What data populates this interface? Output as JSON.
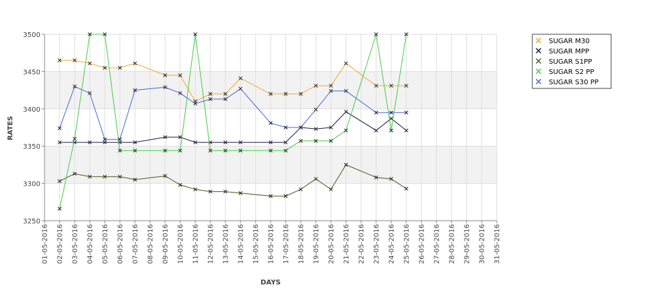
{
  "chart_data": {
    "type": "line",
    "xlabel": "DAYS",
    "ylabel": "RATES",
    "ylim": [
      3250,
      3500
    ],
    "y_ticks": [
      3250,
      3300,
      3350,
      3400,
      3450,
      3500
    ],
    "band_colors": [
      "#ffffff",
      "#f2f2f2"
    ],
    "grid": true,
    "legend_position": "top-right",
    "categories": [
      "01-05-2016",
      "02-05-2016",
      "03-05-2016",
      "04-05-2016",
      "05-05-2016",
      "06-05-2016",
      "07-05-2016",
      "08-05-2016",
      "09-05-2016",
      "10-05-2016",
      "11-05-2016",
      "12-05-2016",
      "13-05-2016",
      "14-05-2016",
      "15-05-2016",
      "16-05-2016",
      "17-05-2016",
      "18-05-2016",
      "19-05-2016",
      "20-05-2016",
      "21-05-2016",
      "22-05-2016",
      "23-05-2016",
      "24-05-2016",
      "25-05-2016",
      "26-05-2016",
      "27-05-2016",
      "28-05-2016",
      "29-05-2016",
      "30-05-2016",
      "31-05-2016"
    ],
    "series": [
      {
        "name": "SUGAR M30",
        "color": "#f0a830",
        "points": [
          [
            "02-05-2016",
            3465
          ],
          [
            "03-05-2016",
            3465
          ],
          [
            "04-05-2016",
            3461
          ],
          [
            "05-05-2016",
            3455
          ],
          [
            "06-05-2016",
            3455
          ],
          [
            "07-05-2016",
            3461
          ],
          [
            "09-05-2016",
            3445
          ],
          [
            "10-05-2016",
            3445
          ],
          [
            "11-05-2016",
            3410
          ],
          [
            "12-05-2016",
            3420
          ],
          [
            "13-05-2016",
            3420
          ],
          [
            "14-05-2016",
            3441
          ],
          [
            "16-05-2016",
            3420
          ],
          [
            "17-05-2016",
            3420
          ],
          [
            "18-05-2016",
            3420
          ],
          [
            "19-05-2016",
            3431
          ],
          [
            "20-05-2016",
            3431
          ],
          [
            "21-05-2016",
            3461
          ],
          [
            "23-05-2016",
            3431
          ],
          [
            "24-05-2016",
            3431
          ],
          [
            "25-05-2016",
            3431
          ]
        ]
      },
      {
        "name": "SUGAR MPP",
        "color": "#1a1a50",
        "points": [
          [
            "02-05-2016",
            3355
          ],
          [
            "03-05-2016",
            3355
          ],
          [
            "04-05-2016",
            3355
          ],
          [
            "05-05-2016",
            3355
          ],
          [
            "06-05-2016",
            3355
          ],
          [
            "07-05-2016",
            3355
          ],
          [
            "09-05-2016",
            3362
          ],
          [
            "10-05-2016",
            3362
          ],
          [
            "11-05-2016",
            3355
          ],
          [
            "12-05-2016",
            3355
          ],
          [
            "13-05-2016",
            3355
          ],
          [
            "14-05-2016",
            3355
          ],
          [
            "16-05-2016",
            3355
          ],
          [
            "17-05-2016",
            3355
          ],
          [
            "18-05-2016",
            3375
          ],
          [
            "19-05-2016",
            3373
          ],
          [
            "20-05-2016",
            3375
          ],
          [
            "21-05-2016",
            3396
          ],
          [
            "23-05-2016",
            3371
          ],
          [
            "24-05-2016",
            3387
          ],
          [
            "25-05-2016",
            3371
          ]
        ]
      },
      {
        "name": "SUGAR S1PP",
        "color": "#4a5a1a",
        "points": [
          [
            "02-05-2016",
            3303
          ],
          [
            "03-05-2016",
            3313
          ],
          [
            "04-05-2016",
            3309
          ],
          [
            "05-05-2016",
            3309
          ],
          [
            "06-05-2016",
            3309
          ],
          [
            "07-05-2016",
            3305
          ],
          [
            "09-05-2016",
            3310
          ],
          [
            "10-05-2016",
            3298
          ],
          [
            "11-05-2016",
            3292
          ],
          [
            "12-05-2016",
            3289
          ],
          [
            "13-05-2016",
            3289
          ],
          [
            "14-05-2016",
            3287
          ],
          [
            "16-05-2016",
            3283
          ],
          [
            "17-05-2016",
            3283
          ],
          [
            "18-05-2016",
            3292
          ],
          [
            "19-05-2016",
            3306
          ],
          [
            "20-05-2016",
            3292
          ],
          [
            "21-05-2016",
            3325
          ],
          [
            "23-05-2016",
            3308
          ],
          [
            "24-05-2016",
            3306
          ],
          [
            "25-05-2016",
            3293
          ]
        ]
      },
      {
        "name": "SUGAR S2 PP",
        "color": "#44cc44",
        "points": [
          [
            "02-05-2016",
            3266
          ],
          [
            "03-05-2016",
            3360
          ],
          [
            "04-05-2016",
            3500
          ],
          [
            "05-05-2016",
            3500
          ],
          [
            "06-05-2016",
            3344
          ],
          [
            "07-05-2016",
            3344
          ],
          [
            "09-05-2016",
            3344
          ],
          [
            "10-05-2016",
            3344
          ],
          [
            "11-05-2016",
            3500
          ],
          [
            "12-05-2016",
            3344
          ],
          [
            "13-05-2016",
            3344
          ],
          [
            "14-05-2016",
            3344
          ],
          [
            "16-05-2016",
            3344
          ],
          [
            "17-05-2016",
            3344
          ],
          [
            "18-05-2016",
            3357
          ],
          [
            "19-05-2016",
            3357
          ],
          [
            "20-05-2016",
            3357
          ],
          [
            "21-05-2016",
            3371
          ],
          [
            "23-05-2016",
            3500
          ],
          [
            "24-05-2016",
            3371
          ],
          [
            "25-05-2016",
            3500
          ]
        ]
      },
      {
        "name": "SUGAR S30 PP",
        "color": "#4466dd",
        "points": [
          [
            "02-05-2016",
            3374
          ],
          [
            "03-05-2016",
            3430
          ],
          [
            "04-05-2016",
            3421
          ],
          [
            "05-05-2016",
            3359
          ],
          [
            "06-05-2016",
            3359
          ],
          [
            "07-05-2016",
            3425
          ],
          [
            "09-05-2016",
            3429
          ],
          [
            "10-05-2016",
            3421
          ],
          [
            "11-05-2016",
            3407
          ],
          [
            "12-05-2016",
            3413
          ],
          [
            "13-05-2016",
            3413
          ],
          [
            "14-05-2016",
            3427
          ],
          [
            "16-05-2016",
            3381
          ],
          [
            "17-05-2016",
            3375
          ],
          [
            "18-05-2016",
            3375
          ],
          [
            "19-05-2016",
            3399
          ],
          [
            "20-05-2016",
            3424
          ],
          [
            "21-05-2016",
            3424
          ],
          [
            "23-05-2016",
            3395
          ],
          [
            "24-05-2016",
            3395
          ],
          [
            "25-05-2016",
            3395
          ]
        ]
      }
    ]
  }
}
